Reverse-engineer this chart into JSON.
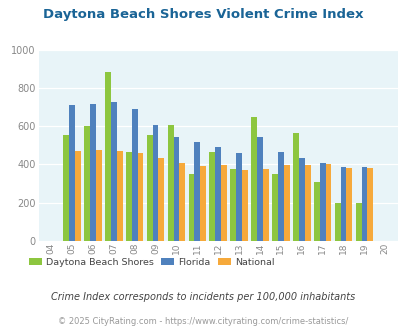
{
  "title": "Daytona Beach Shores Violent Crime Index",
  "years": [
    2004,
    2005,
    2006,
    2007,
    2008,
    2009,
    2010,
    2011,
    2012,
    2013,
    2014,
    2015,
    2016,
    2017,
    2018,
    2019,
    2020
  ],
  "daytona": [
    0,
    555,
    600,
    885,
    465,
    555,
    605,
    350,
    465,
    378,
    645,
    350,
    565,
    308,
    200,
    200,
    0
  ],
  "florida": [
    0,
    710,
    715,
    725,
    690,
    608,
    545,
    515,
    488,
    458,
    543,
    462,
    432,
    405,
    388,
    385,
    0
  ],
  "national": [
    0,
    468,
    475,
    468,
    457,
    432,
    405,
    393,
    394,
    370,
    377,
    394,
    394,
    401,
    383,
    383,
    0
  ],
  "colors": {
    "daytona": "#8dc63f",
    "florida": "#4f81bd",
    "national": "#f6a93b"
  },
  "legend_labels": [
    "Daytona Beach Shores",
    "Florida",
    "National"
  ],
  "footnote1": "Crime Index corresponds to incidents per 100,000 inhabitants",
  "footnote2": "© 2025 CityRating.com - https://www.cityrating.com/crime-statistics/",
  "ylim": [
    0,
    1000
  ],
  "yticks": [
    0,
    200,
    400,
    600,
    800,
    1000
  ],
  "bg_color": "#e8f4f8",
  "title_color": "#1a6496",
  "footnote1_color": "#444444",
  "footnote2_color": "#999999",
  "xtick_labels": [
    "04",
    "05",
    "06",
    "07",
    "08",
    "09",
    "10",
    "11",
    "12",
    "13",
    "14",
    "15",
    "16",
    "17",
    "18",
    "19",
    "20"
  ]
}
